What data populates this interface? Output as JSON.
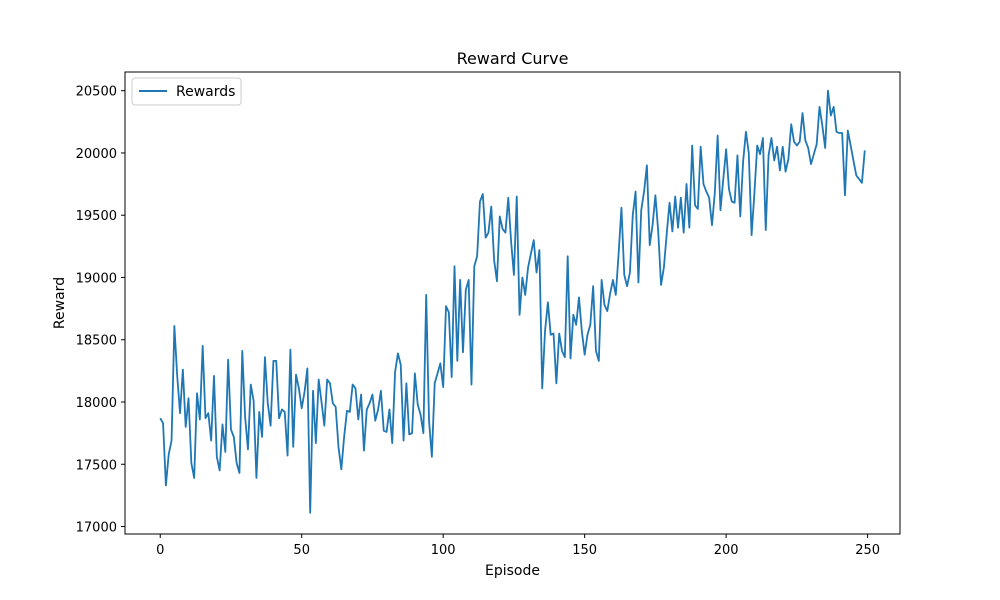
{
  "chart_data": {
    "type": "line",
    "title": "Reward Curve",
    "xlabel": "Episode",
    "ylabel": "Reward",
    "xlim": [
      -12.45,
      261.45
    ],
    "ylim": [
      16940,
      20650
    ],
    "xticks": [
      0,
      50,
      100,
      150,
      200,
      250
    ],
    "yticks": [
      17000,
      17500,
      18000,
      18500,
      19000,
      19500,
      20000,
      20500
    ],
    "grid": false,
    "legend_position": "upper-left",
    "series": [
      {
        "name": "Rewards",
        "color": "#1f77b4",
        "x_start": 0,
        "x_step": 1,
        "values": [
          17870,
          17830,
          17330,
          17580,
          17690,
          18610,
          18210,
          17910,
          18260,
          17800,
          18030,
          17510,
          17390,
          18070,
          17860,
          18450,
          17870,
          17910,
          17690,
          18210,
          17560,
          17450,
          17820,
          17600,
          18340,
          17780,
          17720,
          17510,
          17430,
          18410,
          17880,
          17620,
          18140,
          18010,
          17390,
          17920,
          17720,
          18360,
          17990,
          17810,
          18330,
          18330,
          17870,
          17940,
          17920,
          17570,
          18420,
          17640,
          18220,
          18110,
          17950,
          18080,
          18270,
          17110,
          18090,
          17670,
          18180,
          18000,
          17810,
          18180,
          18150,
          17990,
          17960,
          17640,
          17460,
          17720,
          17930,
          17920,
          18140,
          18110,
          17860,
          18060,
          17610,
          17940,
          17990,
          18060,
          17850,
          17940,
          18090,
          17770,
          17760,
          17940,
          17670,
          18240,
          18390,
          18300,
          17690,
          18150,
          17740,
          17750,
          18230,
          17980,
          17900,
          17750,
          18860,
          17850,
          17560,
          18150,
          18230,
          18310,
          18120,
          18770,
          18720,
          18200,
          19090,
          18330,
          18980,
          18400,
          18900,
          18980,
          18140,
          19090,
          19170,
          19610,
          19670,
          19320,
          19360,
          19570,
          19140,
          18970,
          19490,
          19390,
          19360,
          19640,
          19290,
          19020,
          19650,
          18700,
          19000,
          18860,
          19080,
          19190,
          19300,
          19040,
          19220,
          18110,
          18570,
          18800,
          18540,
          18550,
          18150,
          18550,
          18410,
          18360,
          19170,
          18350,
          18700,
          18620,
          18840,
          18570,
          18380,
          18540,
          18620,
          18930,
          18410,
          18330,
          18980,
          18780,
          18730,
          18870,
          18980,
          18860,
          19190,
          19560,
          19020,
          18930,
          19040,
          19500,
          19690,
          18960,
          19540,
          19690,
          19900,
          19260,
          19420,
          19660,
          19370,
          18940,
          19080,
          19350,
          19600,
          19370,
          19650,
          19400,
          19640,
          19360,
          19750,
          19400,
          20060,
          19580,
          19550,
          20050,
          19750,
          19690,
          19640,
          19420,
          19680,
          20140,
          19540,
          19790,
          20030,
          19710,
          19610,
          19600,
          19980,
          19490,
          19930,
          20170,
          20000,
          19340,
          19680,
          20060,
          19990,
          20120,
          19380,
          19980,
          20120,
          19940,
          20050,
          19860,
          20050,
          19850,
          19950,
          20230,
          20090,
          20060,
          20090,
          20320,
          20100,
          20040,
          19910,
          19990,
          20070,
          20370,
          20220,
          20040,
          20500,
          20300,
          20370,
          20170,
          20160,
          20160,
          19660,
          20180,
          20060,
          19940,
          19820,
          19790,
          19760,
          20020
        ]
      }
    ]
  }
}
